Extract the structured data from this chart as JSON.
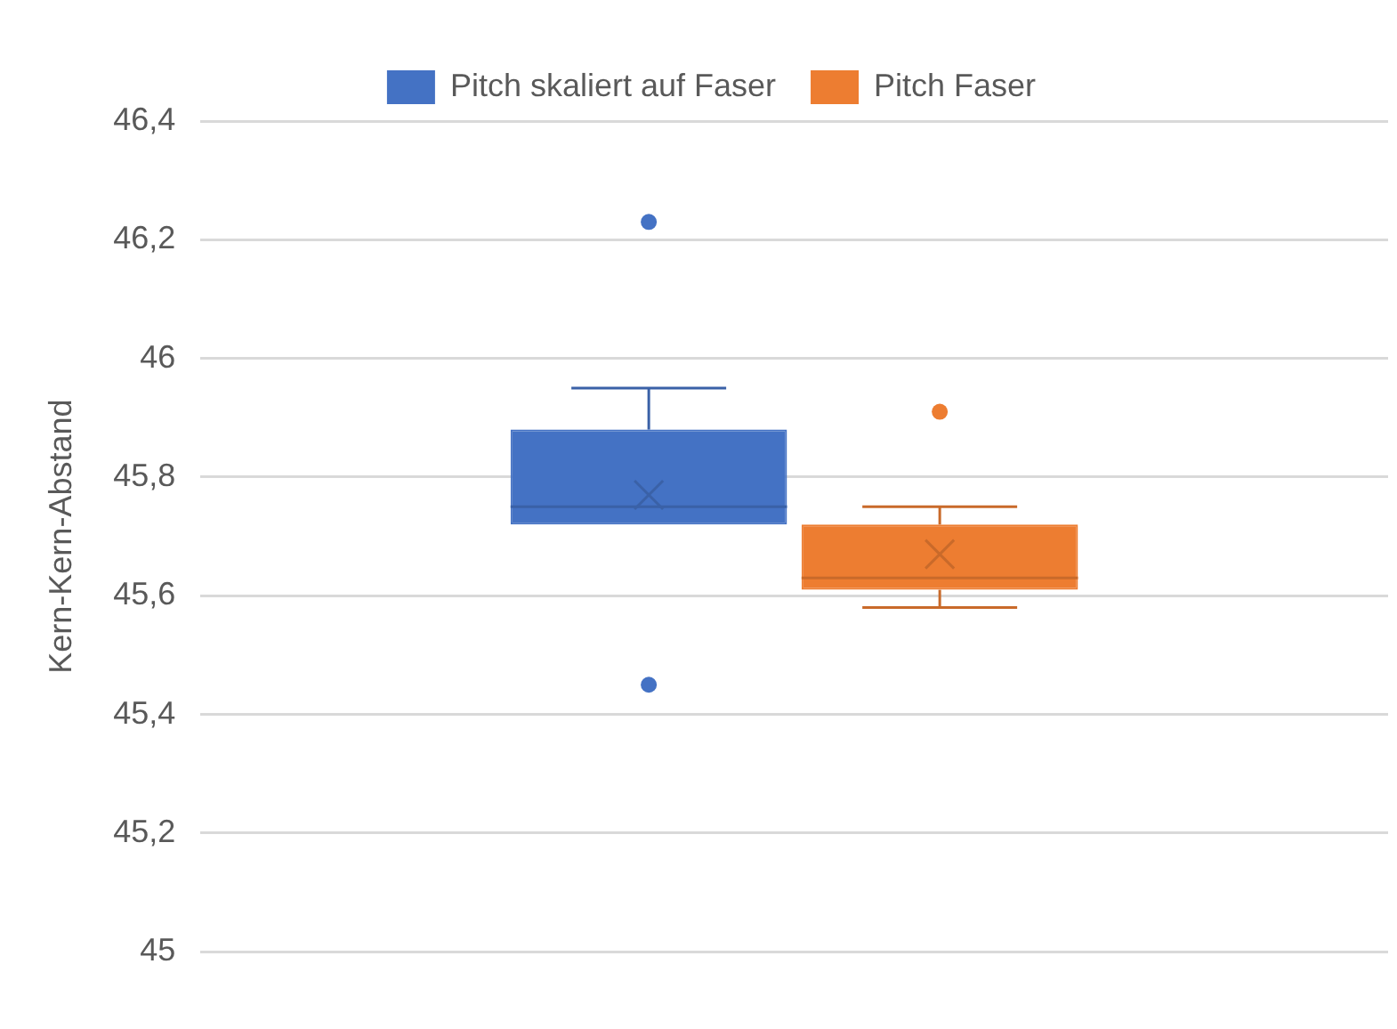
{
  "chart_data": {
    "type": "box",
    "ylabel": "Kern-Kern-Abstand",
    "categories": [
      null
    ],
    "series": [
      {
        "name": "Pitch skaliert auf Faser",
        "color": "#4472c4",
        "boxes": [
          {
            "low": 45.72,
            "q1": 45.72,
            "median": 45.75,
            "q3": 45.88,
            "high": 45.95,
            "mean": 45.77,
            "outliers": [
              46.23,
              45.45
            ]
          }
        ]
      },
      {
        "name": "Pitch Faser",
        "color": "#ed7d31",
        "boxes": [
          {
            "low": 45.58,
            "q1": 45.61,
            "median": 45.63,
            "q3": 45.72,
            "high": 45.75,
            "mean": 45.67,
            "outliers": [
              45.91
            ]
          }
        ]
      }
    ],
    "ylim": [
      45,
      46.4
    ],
    "yticks": [
      45,
      {
        "value": 45.2,
        "label": "45,2"
      },
      {
        "value": 45.4,
        "label": "45,4"
      },
      {
        "value": 45.6,
        "label": "45,6"
      },
      {
        "value": 45.8,
        "label": "45,8"
      },
      46,
      {
        "value": 46.2,
        "label": "46,2"
      },
      {
        "value": 46.4,
        "label": "46,4"
      }
    ],
    "grid": "y",
    "legend": "top"
  }
}
